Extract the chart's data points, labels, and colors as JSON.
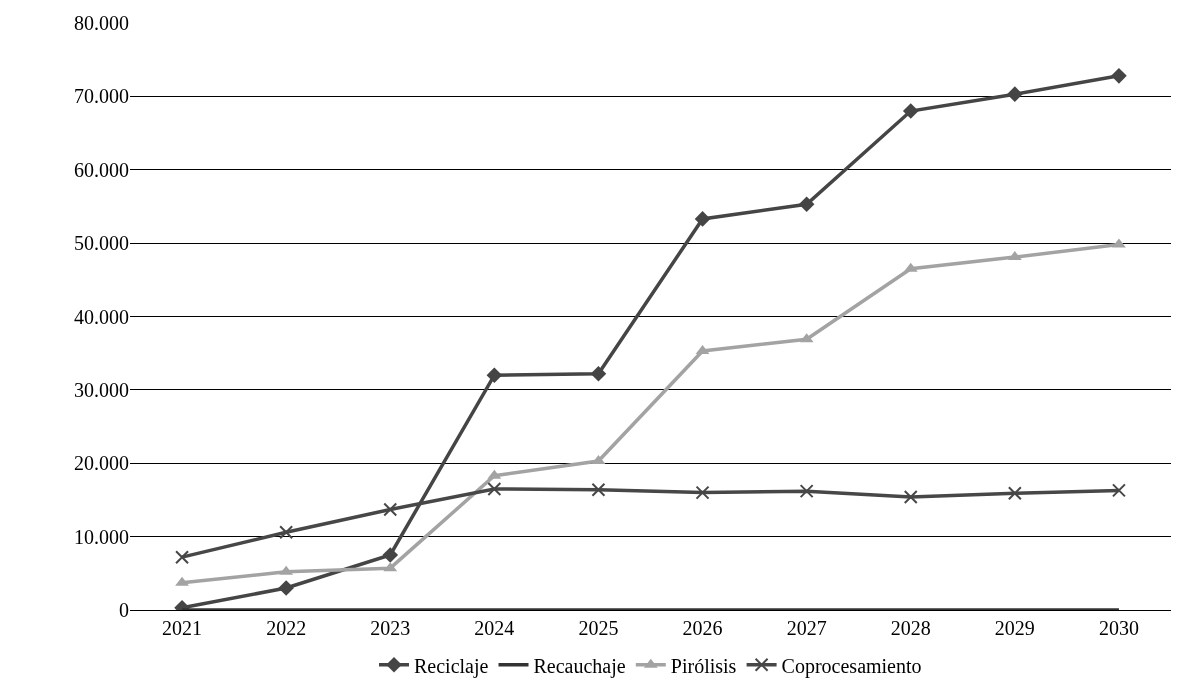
{
  "chart_data": {
    "type": "line",
    "categories": [
      "2021",
      "2022",
      "2023",
      "2024",
      "2025",
      "2026",
      "2027",
      "2028",
      "2029",
      "2030"
    ],
    "series": [
      {
        "name": "Reciclaje",
        "color": "#454545",
        "marker": "diamond",
        "values": [
          300,
          3000,
          7500,
          32000,
          32200,
          53300,
          55300,
          68000,
          70300,
          72800
        ]
      },
      {
        "name": "Recauchaje",
        "color": "#333333",
        "marker": "none",
        "values": [
          0,
          0,
          0,
          0,
          0,
          0,
          0,
          0,
          0,
          0
        ]
      },
      {
        "name": "Pirólisis",
        "color": "#a3a3a3",
        "marker": "triangle",
        "values": [
          3700,
          5200,
          5700,
          18300,
          20300,
          35300,
          36900,
          46500,
          48100,
          49800
        ]
      },
      {
        "name": "Coprocesamiento",
        "color": "#474747",
        "marker": "cross",
        "values": [
          7200,
          10600,
          13700,
          16500,
          16400,
          16000,
          16200,
          15400,
          15900,
          16300
        ]
      }
    ],
    "ylim": [
      0,
      80000
    ],
    "yticks": [
      0,
      {
        "value": 10000,
        "label": "10.000"
      },
      {
        "value": 20000,
        "label": "20.000"
      },
      {
        "value": 30000,
        "label": "30.000"
      },
      {
        "value": 40000,
        "label": "40.000"
      },
      {
        "value": 50000,
        "label": "50.000"
      },
      {
        "value": 60000,
        "label": "60.000"
      },
      {
        "value": 70000,
        "label": "70.000"
      },
      {
        "value": 80000,
        "label": "80.000"
      }
    ],
    "grid": "y",
    "legend": "bottom",
    "line_style": "solid"
  }
}
